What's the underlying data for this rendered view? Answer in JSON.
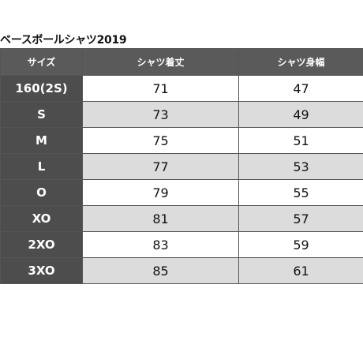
{
  "title": "ベースボールシャツ2019",
  "table": {
    "headers": [
      "サイズ",
      "シャツ着丈",
      "シャツ身幅"
    ],
    "rows": [
      {
        "size": "160(2S)",
        "length": "71",
        "width": "47"
      },
      {
        "size": "S",
        "length": "73",
        "width": "49"
      },
      {
        "size": "M",
        "length": "75",
        "width": "51"
      },
      {
        "size": "L",
        "length": "77",
        "width": "53"
      },
      {
        "size": "O",
        "length": "79",
        "width": "55"
      },
      {
        "size": "XO",
        "length": "81",
        "width": "57"
      },
      {
        "size": "2XO",
        "length": "83",
        "width": "59"
      },
      {
        "size": "3XO",
        "length": "85",
        "width": "61"
      }
    ]
  },
  "colors": {
    "header_bg": "#5a5a5a",
    "size_cell_bg": "#4d4d4d",
    "alt_row_bg": "#dcdcdc"
  }
}
